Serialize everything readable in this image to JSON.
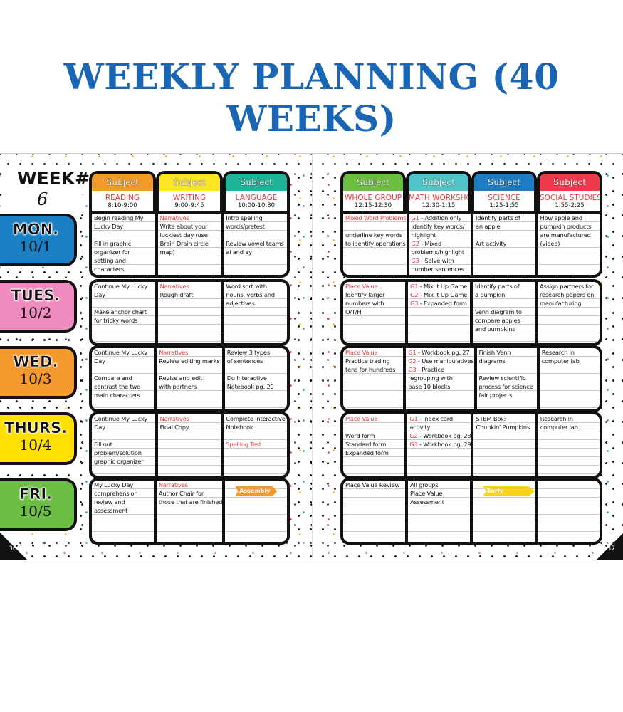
{
  "title": "WEEKLY PLANNING (40 WEEKS)",
  "week": {
    "label": "WEEK#",
    "number": "6"
  },
  "pages": {
    "left_number": "36",
    "right_number": "37"
  },
  "colors": {
    "title": "#1a66b5",
    "red_text": "#e8393f"
  },
  "left_columns": [
    {
      "header": "Subject",
      "name": "READING",
      "time": "8:10-9:00",
      "color": "#f39a2c"
    },
    {
      "header": "Subject",
      "name": "WRITING",
      "time": "9:00-9:45",
      "color": "#fde725"
    },
    {
      "header": "Subject",
      "name": "LANGUAGE",
      "time": "10:00-10:30",
      "color": "#1fb39a"
    }
  ],
  "right_columns": [
    {
      "header": "Subject",
      "name": "WHOLE GROUP",
      "time": "12:15-12:30",
      "color": "#6bbf3f"
    },
    {
      "header": "Subject",
      "name": "MATH WORKSHOP",
      "time": "12:30-1:15",
      "color": "#4ec3c8"
    },
    {
      "header": "Subject",
      "name": "SCIENCE",
      "time": "1:25-1:55",
      "color": "#1e7cc2"
    },
    {
      "header": "Subject",
      "name": "SOCIAL STUDIES",
      "time": "1:55-2:25",
      "color": "#ee3b4b"
    }
  ],
  "days": [
    {
      "name": "MON.",
      "date": "10/1",
      "color": "#1b7fc4",
      "left": [
        [
          "Begin reading My",
          "Lucky Day",
          "",
          "Fill in graphic",
          "organizer for",
          "setting and",
          "characters"
        ],
        [
          {
            "red": "Narratives"
          },
          "Write about your",
          "luckiest day (use",
          "Brain Drain circle",
          "map)"
        ],
        [
          "Intro spelling",
          "words/pretest",
          "",
          "Review vowel teams",
          "ai and ay"
        ]
      ],
      "right": [
        [
          {
            "red": "Mixed Word Problems"
          },
          "",
          "underline key words",
          "to identify operations"
        ],
        [
          {
            "red": "G1",
            "text": " - Addition only"
          },
          "Identify key words/",
          "highlight",
          {
            "red": "G2",
            "text": " - Mixed"
          },
          "problems/highlight",
          {
            "red": "G3",
            "text": " - Solve with"
          },
          "number sentences"
        ],
        [
          "Identify parts of",
          "an apple",
          "",
          "Art activity"
        ],
        [
          "How apple and",
          "pumpkin products",
          "are manufactured",
          "(video)"
        ]
      ]
    },
    {
      "name": "TUES.",
      "date": "10/2",
      "color": "#f08bbf",
      "left": [
        [
          "Continue My Lucky",
          "Day",
          "",
          "Make anchor chart",
          "for tricky words"
        ],
        [
          {
            "red": "Narratives"
          },
          "Rough draft"
        ],
        [
          "Word sort with",
          "nouns, verbs and",
          "adjectives"
        ]
      ],
      "right": [
        [
          {
            "red": "Place Value"
          },
          "Identify larger",
          "numbers with",
          "O/T/H"
        ],
        [
          {
            "red": "G1",
            "text": " - Mix It Up Game"
          },
          {
            "red": "G2",
            "text": " - Mix It Up Game"
          },
          {
            "red": "G3",
            "text": " - Expanded form"
          }
        ],
        [
          "Identify parts of",
          "a pumpkin",
          "",
          "Venn diagram to",
          "compare apples",
          "and pumpkins"
        ],
        [
          "Assign partners for",
          "research papers on",
          "manufacturing"
        ]
      ]
    },
    {
      "name": "WED.",
      "date": "10/3",
      "color": "#f49a2f",
      "left": [
        [
          "Continue My Lucky",
          "Day",
          "",
          "Compare and",
          "contrast the two",
          "main characters"
        ],
        [
          {
            "red": "Narratives"
          },
          "Review editing marks!",
          "",
          "Revise and edit",
          "with partners"
        ],
        [
          "Review 3 types",
          "of sentences",
          "",
          "Do Interactive",
          "Notebook pg. 29"
        ]
      ],
      "right": [
        [
          {
            "red": "Place Value"
          },
          "Practice trading",
          "tens for hundreds"
        ],
        [
          {
            "red": "G1",
            "text": " - Workbook pg. 27"
          },
          {
            "red": "G2",
            "text": " - Use manipulatives"
          },
          {
            "red": "G3",
            "text": " - Practice"
          },
          "regrouping with",
          "base 10 blocks"
        ],
        [
          "Finish Venn",
          "diagrams",
          "",
          "Review scientific",
          "process for science",
          "fair projects"
        ],
        [
          "Research in",
          "computer lab"
        ]
      ]
    },
    {
      "name": "THURS.",
      "date": "10/4",
      "color": "#ffe000",
      "left": [
        [
          "Continue My Lucky",
          "Day",
          "",
          "Fill out",
          "problem/solution",
          "graphic organizer"
        ],
        [
          {
            "red": "Narratives"
          },
          "Final Copy"
        ],
        [
          "Complete Interactive",
          "Notebook",
          "",
          {
            "red": "Spelling Test"
          }
        ]
      ],
      "right": [
        [
          {
            "red": "Place Value"
          },
          "",
          "Word form",
          "Standard form",
          "Expanded form"
        ],
        [
          {
            "red": "G1",
            "text": " - Index card"
          },
          "activity",
          {
            "red": "G2",
            "text": " - Workbook pg. 28"
          },
          {
            "red": "G3",
            "text": " - Workbook pg. 29"
          }
        ],
        [
          "STEM Box:",
          "Chunkin' Pumpkins"
        ],
        [
          "Research in",
          "computer lab"
        ]
      ]
    },
    {
      "name": "FRI.",
      "date": "10/5",
      "color": "#6cbe45",
      "left": [
        [
          "My Lucky Day",
          "comprehension",
          "review and",
          "assessment"
        ],
        [
          {
            "red": "Narratives"
          },
          "Author Chair for",
          "those that are finished"
        ],
        []
      ],
      "left_banner": {
        "col": 2,
        "text": "Assembly",
        "color": "#f39a2c"
      },
      "right": [
        [
          "Place Value Review"
        ],
        [
          "All groups",
          "Place Value",
          "Assessment"
        ],
        [],
        []
      ],
      "right_banner": {
        "col": 2,
        "text": "Early Release",
        "color": "#f7d417"
      }
    }
  ]
}
